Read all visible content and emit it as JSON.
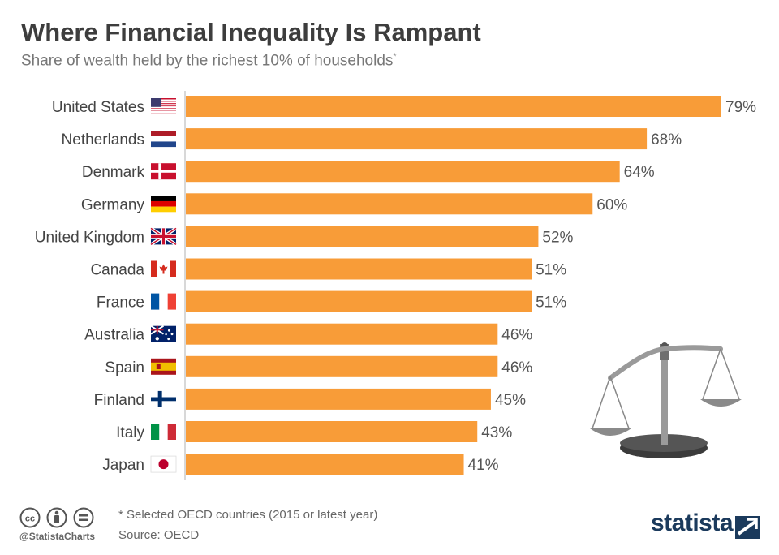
{
  "title": "Where Financial Inequality Is Rampant",
  "subtitle": "Share of wealth held by the richest 10% of households",
  "subtitle_mark": "*",
  "chart_data": {
    "type": "bar",
    "orientation": "horizontal",
    "title": "Where Financial Inequality Is Rampant",
    "subtitle": "Share of wealth held by the richest 10% of households*",
    "xlabel": "",
    "ylabel": "",
    "unit": "%",
    "xlim": [
      0,
      100
    ],
    "categories": [
      "United States",
      "Netherlands",
      "Denmark",
      "Germany",
      "United Kingdom",
      "Canada",
      "France",
      "Australia",
      "Spain",
      "Finland",
      "Italy",
      "Japan"
    ],
    "values": [
      79,
      68,
      64,
      60,
      52,
      51,
      51,
      46,
      46,
      45,
      43,
      41
    ],
    "labels": [
      "79%",
      "68%",
      "64%",
      "60%",
      "52%",
      "51%",
      "51%",
      "46%",
      "46%",
      "45%",
      "43%",
      "41%"
    ],
    "flags": [
      "us-flag-icon",
      "nl-flag-icon",
      "dk-flag-icon",
      "de-flag-icon",
      "uk-flag-icon",
      "ca-flag-icon",
      "fr-flag-icon",
      "au-flag-icon",
      "es-flag-icon",
      "fi-flag-icon",
      "it-flag-icon",
      "jp-flag-icon"
    ],
    "bar_color": "#f89c38"
  },
  "illustration": "scales-icon",
  "footer": {
    "handle": "@StatistaCharts",
    "note": "* Selected OECD countries (2015 or latest year)",
    "source": "Source: OECD",
    "brand": "statista",
    "license_icons": [
      "cc-icon",
      "attribution-icon",
      "no-derivatives-icon"
    ]
  },
  "colors": {
    "bar": "#f89c38",
    "title": "#3d3d3d",
    "text": "#555555",
    "axis": "#d8d8d8",
    "brand": "#1b3a5c"
  }
}
